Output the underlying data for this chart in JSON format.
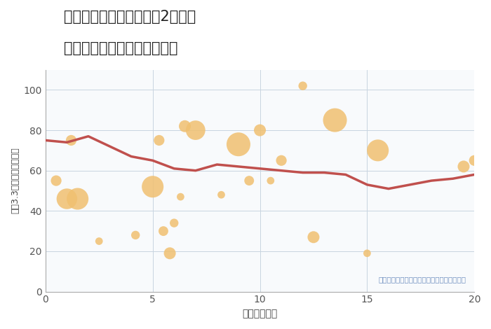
{
  "title_line1": "三重県名張市桔梗が丘南2番町の",
  "title_line2": "駅距離別中古マンション価格",
  "xlabel": "駅距離（分）",
  "ylabel": "坪（3.3㎡）単価（万円）",
  "bg_color": "#ffffff",
  "plot_bg_color": "#f8fafc",
  "annotation": "円の大きさは、取引のあった物件面積を示す",
  "annotation_color": "#7090c0",
  "xlim": [
    0,
    20
  ],
  "ylim": [
    0,
    110
  ],
  "yticks": [
    0,
    20,
    40,
    60,
    80,
    100
  ],
  "xticks": [
    0,
    5,
    10,
    15,
    20
  ],
  "grid_color": "#c8d4e0",
  "bubble_color": "#f0c070",
  "bubble_alpha": 0.85,
  "line_color": "#c0504d",
  "line_width": 2.5,
  "scatter_x": [
    0.5,
    1.2,
    1.5,
    2.5,
    4.2,
    5.0,
    5.3,
    5.5,
    5.8,
    6.0,
    6.3,
    6.5,
    7.0,
    8.2,
    9.0,
    9.5,
    10.0,
    10.5,
    11.0,
    12.0,
    12.5,
    13.5,
    15.0,
    15.5,
    19.5,
    20.0
  ],
  "scatter_y": [
    55,
    75,
    46,
    25,
    28,
    52,
    75,
    30,
    19,
    34,
    47,
    82,
    80,
    48,
    73,
    55,
    80,
    55,
    65,
    102,
    27,
    85,
    19,
    70,
    62,
    65
  ],
  "scatter_size": [
    120,
    120,
    500,
    60,
    80,
    500,
    120,
    100,
    150,
    80,
    60,
    150,
    400,
    60,
    600,
    100,
    150,
    60,
    120,
    80,
    150,
    600,
    60,
    500,
    150,
    120
  ],
  "scatter_x2": [
    1.0
  ],
  "scatter_y2": [
    46
  ],
  "scatter_size2": [
    450
  ],
  "line_x": [
    0,
    1,
    2,
    3,
    4,
    5,
    6,
    7,
    8,
    9,
    10,
    11,
    12,
    13,
    14,
    15,
    16,
    17,
    18,
    19,
    20
  ],
  "line_y": [
    75,
    74,
    77,
    72,
    67,
    65,
    61,
    60,
    63,
    62,
    61,
    60,
    59,
    59,
    58,
    53,
    51,
    53,
    55,
    56,
    58
  ]
}
